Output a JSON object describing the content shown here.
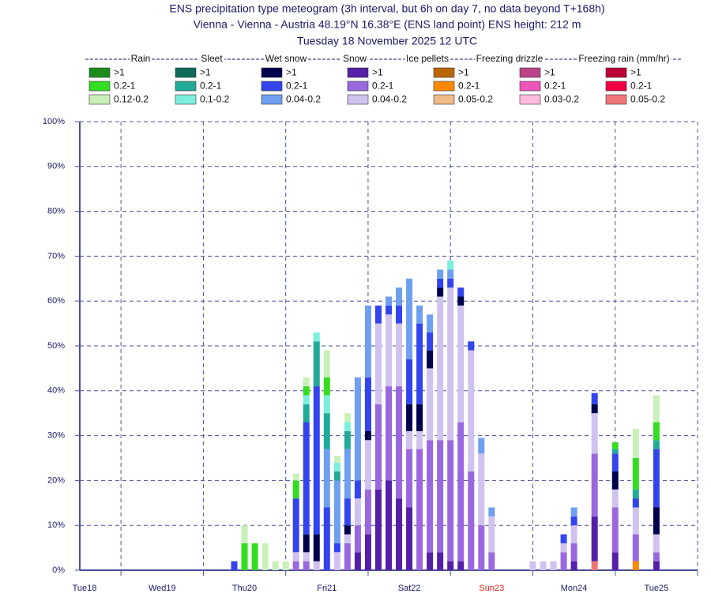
{
  "chart_data": {
    "type": "stacked-bar",
    "title": "ENS precipitation type meteogram (3h interval, but 6h on day 7, no data beyond T+168h)",
    "subtitle": "Vienna - Vienna - Austria 48.19°N 16.38°E (ENS land point) ENS height: 212 m",
    "date": "Tuesday 18 November 2025 12 UTC",
    "x": [
      45,
      48,
      51,
      54,
      57,
      60,
      63,
      66,
      69,
      72,
      75,
      78,
      81,
      84,
      87,
      90,
      93,
      96,
      99,
      102,
      105,
      108,
      111,
      114,
      117,
      120,
      132,
      135,
      138,
      141,
      144,
      150,
      156,
      162,
      168
    ],
    "xlim": [
      0,
      180
    ],
    "xticks": [
      {
        "value": 0,
        "label": "Tue18"
      },
      {
        "value": 24,
        "label": "Wed19"
      },
      {
        "value": 48,
        "label": "Thu20"
      },
      {
        "value": 72,
        "label": "Fri21"
      },
      {
        "value": 96,
        "label": "Sat22"
      },
      {
        "value": 120,
        "label": "Sun23",
        "color": "#e8201a"
      },
      {
        "value": 144,
        "label": "Mon24"
      },
      {
        "value": 168,
        "label": "Tue25"
      }
    ],
    "ylim": [
      0,
      100
    ],
    "yticks": [
      {
        "value": 0,
        "label": "0%"
      },
      {
        "value": 10,
        "label": "10%"
      },
      {
        "value": 20,
        "label": "20%"
      },
      {
        "value": 30,
        "label": "30%"
      },
      {
        "value": 40,
        "label": "40%"
      },
      {
        "value": 50,
        "label": "50%"
      },
      {
        "value": 60,
        "label": "60%"
      },
      {
        "value": 70,
        "label": "70%"
      },
      {
        "value": 80,
        "label": "80%"
      },
      {
        "value": 90,
        "label": "90%"
      },
      {
        "value": 100,
        "label": "100%"
      }
    ],
    "grid": true,
    "groups": [
      {
        "name": "Rain",
        "series": [
          {
            "name": ">1",
            "color": "#1e8c1a",
            "values": [
              0,
              0,
              0,
              0,
              0,
              0,
              0,
              0,
              0,
              0,
              0,
              0,
              0,
              0,
              0,
              0,
              0,
              0,
              0,
              0,
              0,
              0,
              0,
              0,
              0,
              0,
              0,
              0,
              0,
              0,
              0,
              0,
              0,
              0,
              0
            ]
          },
          {
            "name": "0.2-1",
            "color": "#33dd22",
            "values": [
              0,
              6,
              6,
              0,
              0,
              0,
              4,
              2,
              0,
              4,
              0,
              0,
              0,
              0,
              0,
              0,
              0,
              0,
              0,
              0,
              0,
              0,
              0,
              0,
              0,
              0,
              0,
              0,
              0,
              0,
              0,
              0,
              1.5,
              7,
              4
            ]
          },
          {
            "name": "0.12-0.2",
            "color": "#c9f0b9",
            "values": [
              0,
              4,
              0,
              6,
              2,
              2,
              1.5,
              2,
              0,
              6,
              1.5,
              2,
              0,
              0,
              0,
              0,
              0,
              0,
              0,
              0,
              0,
              0,
              0,
              0,
              0,
              0,
              0,
              0,
              0,
              0,
              0,
              0,
              0,
              6.5,
              6
            ]
          }
        ]
      },
      {
        "name": "Sleet",
        "series": [
          {
            "name": ">1",
            "color": "#0f6a5a",
            "values": [
              0,
              0,
              0,
              0,
              0,
              0,
              0,
              0,
              0,
              0,
              0,
              0,
              0,
              0,
              0,
              0,
              0,
              0,
              0,
              0,
              0,
              0,
              0,
              0,
              0,
              0,
              0,
              0,
              0,
              0,
              0,
              0,
              0,
              0,
              0
            ]
          },
          {
            "name": "0.2-1",
            "color": "#22aa99",
            "values": [
              0,
              0,
              0,
              0,
              0,
              0,
              0,
              4,
              10,
              8,
              2,
              4,
              0,
              0,
              0,
              0,
              0,
              0,
              0,
              0,
              0,
              0,
              0,
              0,
              0,
              0,
              0,
              0,
              0,
              0,
              0,
              0,
              1,
              2,
              2
            ]
          },
          {
            "name": "0.1-0.2",
            "color": "#7ceedd",
            "values": [
              0,
              0,
              0,
              0,
              0,
              0,
              0,
              2,
              2,
              4,
              2,
              2,
              0,
              0,
              0,
              0,
              0,
              0,
              0,
              0,
              0,
              2,
              0,
              0,
              0,
              0,
              0,
              0,
              0,
              0,
              0,
              0,
              0,
              0,
              0
            ]
          }
        ]
      },
      {
        "name": "Wet snow",
        "series": [
          {
            "name": ">1",
            "color": "#00004e",
            "values": [
              0,
              0,
              0,
              0,
              0,
              0,
              0,
              4,
              6,
              0,
              0,
              2,
              0,
              2,
              0,
              0,
              0,
              6,
              6,
              4,
              2,
              0,
              2,
              0,
              0,
              0,
              0,
              0,
              0,
              0,
              0,
              2,
              4,
              0,
              6
            ]
          },
          {
            "name": "0.2-1",
            "color": "#3344ee",
            "values": [
              2,
              0,
              0,
              0,
              0,
              0,
              12,
              25,
              33,
              14,
              2,
              6,
              4,
              12,
              4,
              2,
              4,
              10,
              18,
              4,
              2,
              2,
              2,
              2,
              0,
              0,
              0,
              0,
              0,
              2,
              2,
              2.5,
              4,
              2,
              13
            ]
          },
          {
            "name": "0.04-0.2",
            "color": "#6f9ff0",
            "values": [
              0,
              0,
              0,
              0,
              0,
              0,
              0,
              0,
              0,
              13,
              14,
              11,
              23,
              16,
              0,
              2,
              4,
              18,
              4,
              4,
              2,
              2,
              0,
              0,
              3.5,
              2,
              0,
              0,
              0,
              0,
              2,
              0,
              0,
              0,
              0
            ]
          }
        ]
      },
      {
        "name": "Snow",
        "series": [
          {
            "name": ">1",
            "color": "#5420a8",
            "values": [
              0,
              0,
              0,
              0,
              0,
              0,
              0,
              0,
              0,
              0,
              0,
              0,
              4,
              8,
              18,
              20,
              16,
              14,
              0,
              4,
              4,
              2,
              2,
              0,
              0,
              0,
              0,
              0,
              0,
              0,
              2,
              10,
              4,
              0,
              2
            ]
          },
          {
            "name": "0.2-1",
            "color": "#9a68de",
            "values": [
              0,
              0,
              0,
              0,
              0,
              0,
              2,
              2,
              0,
              0,
              0,
              6,
              6,
              10,
              19,
              21,
              25,
              13,
              27,
              25,
              25,
              27,
              31,
              22,
              10,
              4,
              0,
              0,
              0,
              4,
              4,
              14,
              10,
              6,
              2
            ]
          },
          {
            "name": "0.04-0.2",
            "color": "#d0c2ef",
            "values": [
              0,
              0,
              0,
              0,
              0,
              0,
              2,
              2,
              2,
              0,
              4,
              2,
              6,
              11,
              18,
              16,
              14,
              4,
              4,
              16,
              32,
              34,
              26,
              27,
              16,
              8,
              2,
              2,
              2,
              2,
              4,
              9,
              4,
              6,
              4
            ]
          }
        ]
      },
      {
        "name": "Ice pellets",
        "series": [
          {
            "name": ">1",
            "color": "#bb6600",
            "values": [
              0,
              0,
              0,
              0,
              0,
              0,
              0,
              0,
              0,
              0,
              0,
              0,
              0,
              0,
              0,
              0,
              0,
              0,
              0,
              0,
              0,
              0,
              0,
              0,
              0,
              0,
              0,
              0,
              0,
              0,
              0,
              0,
              0,
              0,
              0
            ]
          },
          {
            "name": "0.2-1",
            "color": "#ff8800",
            "values": [
              0,
              0,
              0,
              0,
              0,
              0,
              0,
              0,
              0,
              0,
              0,
              0,
              0,
              0,
              0,
              0,
              0,
              0,
              0,
              0,
              0,
              0,
              0,
              0,
              0,
              0,
              0,
              0,
              0,
              0,
              0,
              0,
              0,
              2,
              0
            ]
          },
          {
            "name": "0.05-0.2",
            "color": "#eebb88",
            "values": [
              0,
              0,
              0,
              0,
              0,
              0,
              0,
              0,
              0,
              0,
              0,
              0,
              0,
              0,
              0,
              0,
              0,
              0,
              0,
              0,
              0,
              0,
              0,
              0,
              0,
              0,
              0,
              0,
              0,
              0,
              0,
              0,
              0,
              0,
              0
            ]
          }
        ]
      },
      {
        "name": "Freezing drizzle",
        "series": [
          {
            "name": ">1",
            "color": "#bb4488",
            "values": [
              0,
              0,
              0,
              0,
              0,
              0,
              0,
              0,
              0,
              0,
              0,
              0,
              0,
              0,
              0,
              0,
              0,
              0,
              0,
              0,
              0,
              0,
              0,
              0,
              0,
              0,
              0,
              0,
              0,
              0,
              0,
              0,
              0,
              0,
              0
            ]
          },
          {
            "name": "0.2-1",
            "color": "#ee55bb",
            "values": [
              0,
              0,
              0,
              0,
              0,
              0,
              0,
              0,
              0,
              0,
              0,
              0,
              0,
              0,
              0,
              0,
              0,
              0,
              0,
              0,
              0,
              0,
              0,
              0,
              0,
              0,
              0,
              0,
              0,
              0,
              0,
              0,
              0,
              0,
              0
            ]
          },
          {
            "name": "0.03-0.2",
            "color": "#ffbbdd",
            "values": [
              0,
              0,
              0,
              0,
              0,
              0,
              0,
              0,
              0,
              0,
              0,
              0,
              0,
              0,
              0,
              0,
              0,
              0,
              0,
              0,
              0,
              0,
              0,
              0,
              0,
              0,
              0,
              0,
              0,
              0,
              0,
              0,
              0,
              0,
              0
            ]
          }
        ]
      },
      {
        "name": "Freezing rain (mm/hr)",
        "series": [
          {
            "name": ">1",
            "color": "#bb0033",
            "values": [
              0,
              0,
              0,
              0,
              0,
              0,
              0,
              0,
              0,
              0,
              0,
              0,
              0,
              0,
              0,
              0,
              0,
              0,
              0,
              0,
              0,
              0,
              0,
              0,
              0,
              0,
              0,
              0,
              0,
              0,
              0,
              0,
              0,
              0,
              0
            ]
          },
          {
            "name": "0.2-1",
            "color": "#ee0044",
            "values": [
              0,
              0,
              0,
              0,
              0,
              0,
              0,
              0,
              0,
              0,
              0,
              0,
              0,
              0,
              0,
              0,
              0,
              0,
              0,
              0,
              0,
              0,
              0,
              0,
              0,
              0,
              0,
              0,
              0,
              0,
              0,
              0,
              0,
              0,
              0
            ]
          },
          {
            "name": "0.05-0.2",
            "color": "#ee7777",
            "values": [
              0,
              0,
              0,
              0,
              0,
              0,
              0,
              0,
              0,
              0,
              0,
              0,
              0,
              0,
              0,
              0,
              0,
              0,
              0,
              0,
              0,
              0,
              0,
              0,
              0,
              0,
              0,
              0,
              0,
              0,
              0,
              2,
              0,
              0,
              0
            ]
          }
        ]
      }
    ]
  }
}
